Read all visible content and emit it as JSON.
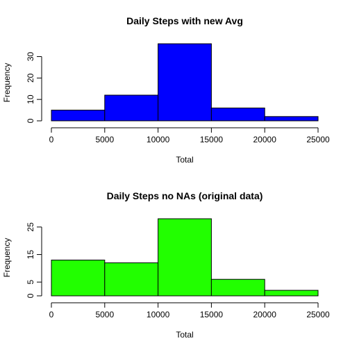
{
  "chart_data": [
    {
      "type": "bar",
      "subtype": "histogram",
      "title": "Daily Steps with new Avg",
      "xlabel": "Total",
      "ylabel": "Frequency",
      "bins": [
        [
          0,
          5000
        ],
        [
          5000,
          10000
        ],
        [
          10000,
          15000
        ],
        [
          15000,
          20000
        ],
        [
          20000,
          25000
        ]
      ],
      "values": [
        5,
        12,
        36,
        6,
        2
      ],
      "xlim": [
        0,
        25000
      ],
      "ylim": [
        0,
        36
      ],
      "xticks": [
        "0",
        "5000",
        "10000",
        "15000",
        "20000",
        "25000"
      ],
      "yticks": [
        "0",
        "10",
        "20",
        "30"
      ],
      "color": "#0000ff",
      "grid": false
    },
    {
      "type": "bar",
      "subtype": "histogram",
      "title": "Daily Steps no NAs (original data)",
      "xlabel": "Total",
      "ylabel": "Frequency",
      "bins": [
        [
          0,
          5000
        ],
        [
          5000,
          10000
        ],
        [
          10000,
          15000
        ],
        [
          15000,
          20000
        ],
        [
          20000,
          25000
        ]
      ],
      "values": [
        13,
        12,
        28,
        6,
        2
      ],
      "xlim": [
        0,
        25000
      ],
      "ylim": [
        0,
        28
      ],
      "xticks": [
        "0",
        "5000",
        "10000",
        "15000",
        "20000",
        "25000"
      ],
      "yticks": [
        "0",
        "5",
        "15",
        "25"
      ],
      "color": "#22ff00",
      "grid": false
    }
  ]
}
